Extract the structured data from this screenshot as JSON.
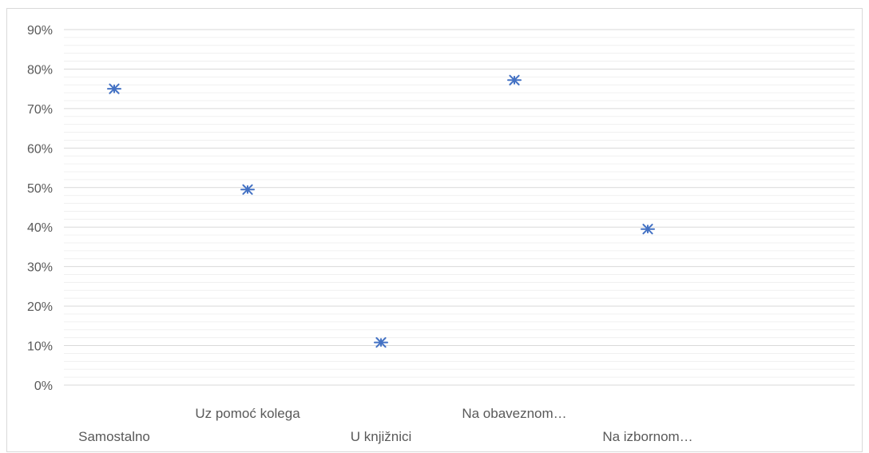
{
  "chart_data": {
    "type": "scatter",
    "marker": "asterisk",
    "marker_color": "#4472c4",
    "gridline_color": "#d9d9d9",
    "minor_gridline_color": "#f0f0f0",
    "grid": true,
    "legend": "none",
    "title": "",
    "xlabel": "",
    "ylabel": "",
    "ylim": [
      0,
      0.9
    ],
    "y_ticks": [
      "0%",
      "10%",
      "20%",
      "30%",
      "40%",
      "50%",
      "60%",
      "70%",
      "80%",
      "90%"
    ],
    "categories": [
      "Samostalno",
      "Uz pomoć kolega",
      "U knjižnici",
      "Na obaveznom…",
      "Na izbornom…"
    ],
    "values": [
      0.75,
      0.495,
      0.108,
      0.772,
      0.395
    ]
  }
}
